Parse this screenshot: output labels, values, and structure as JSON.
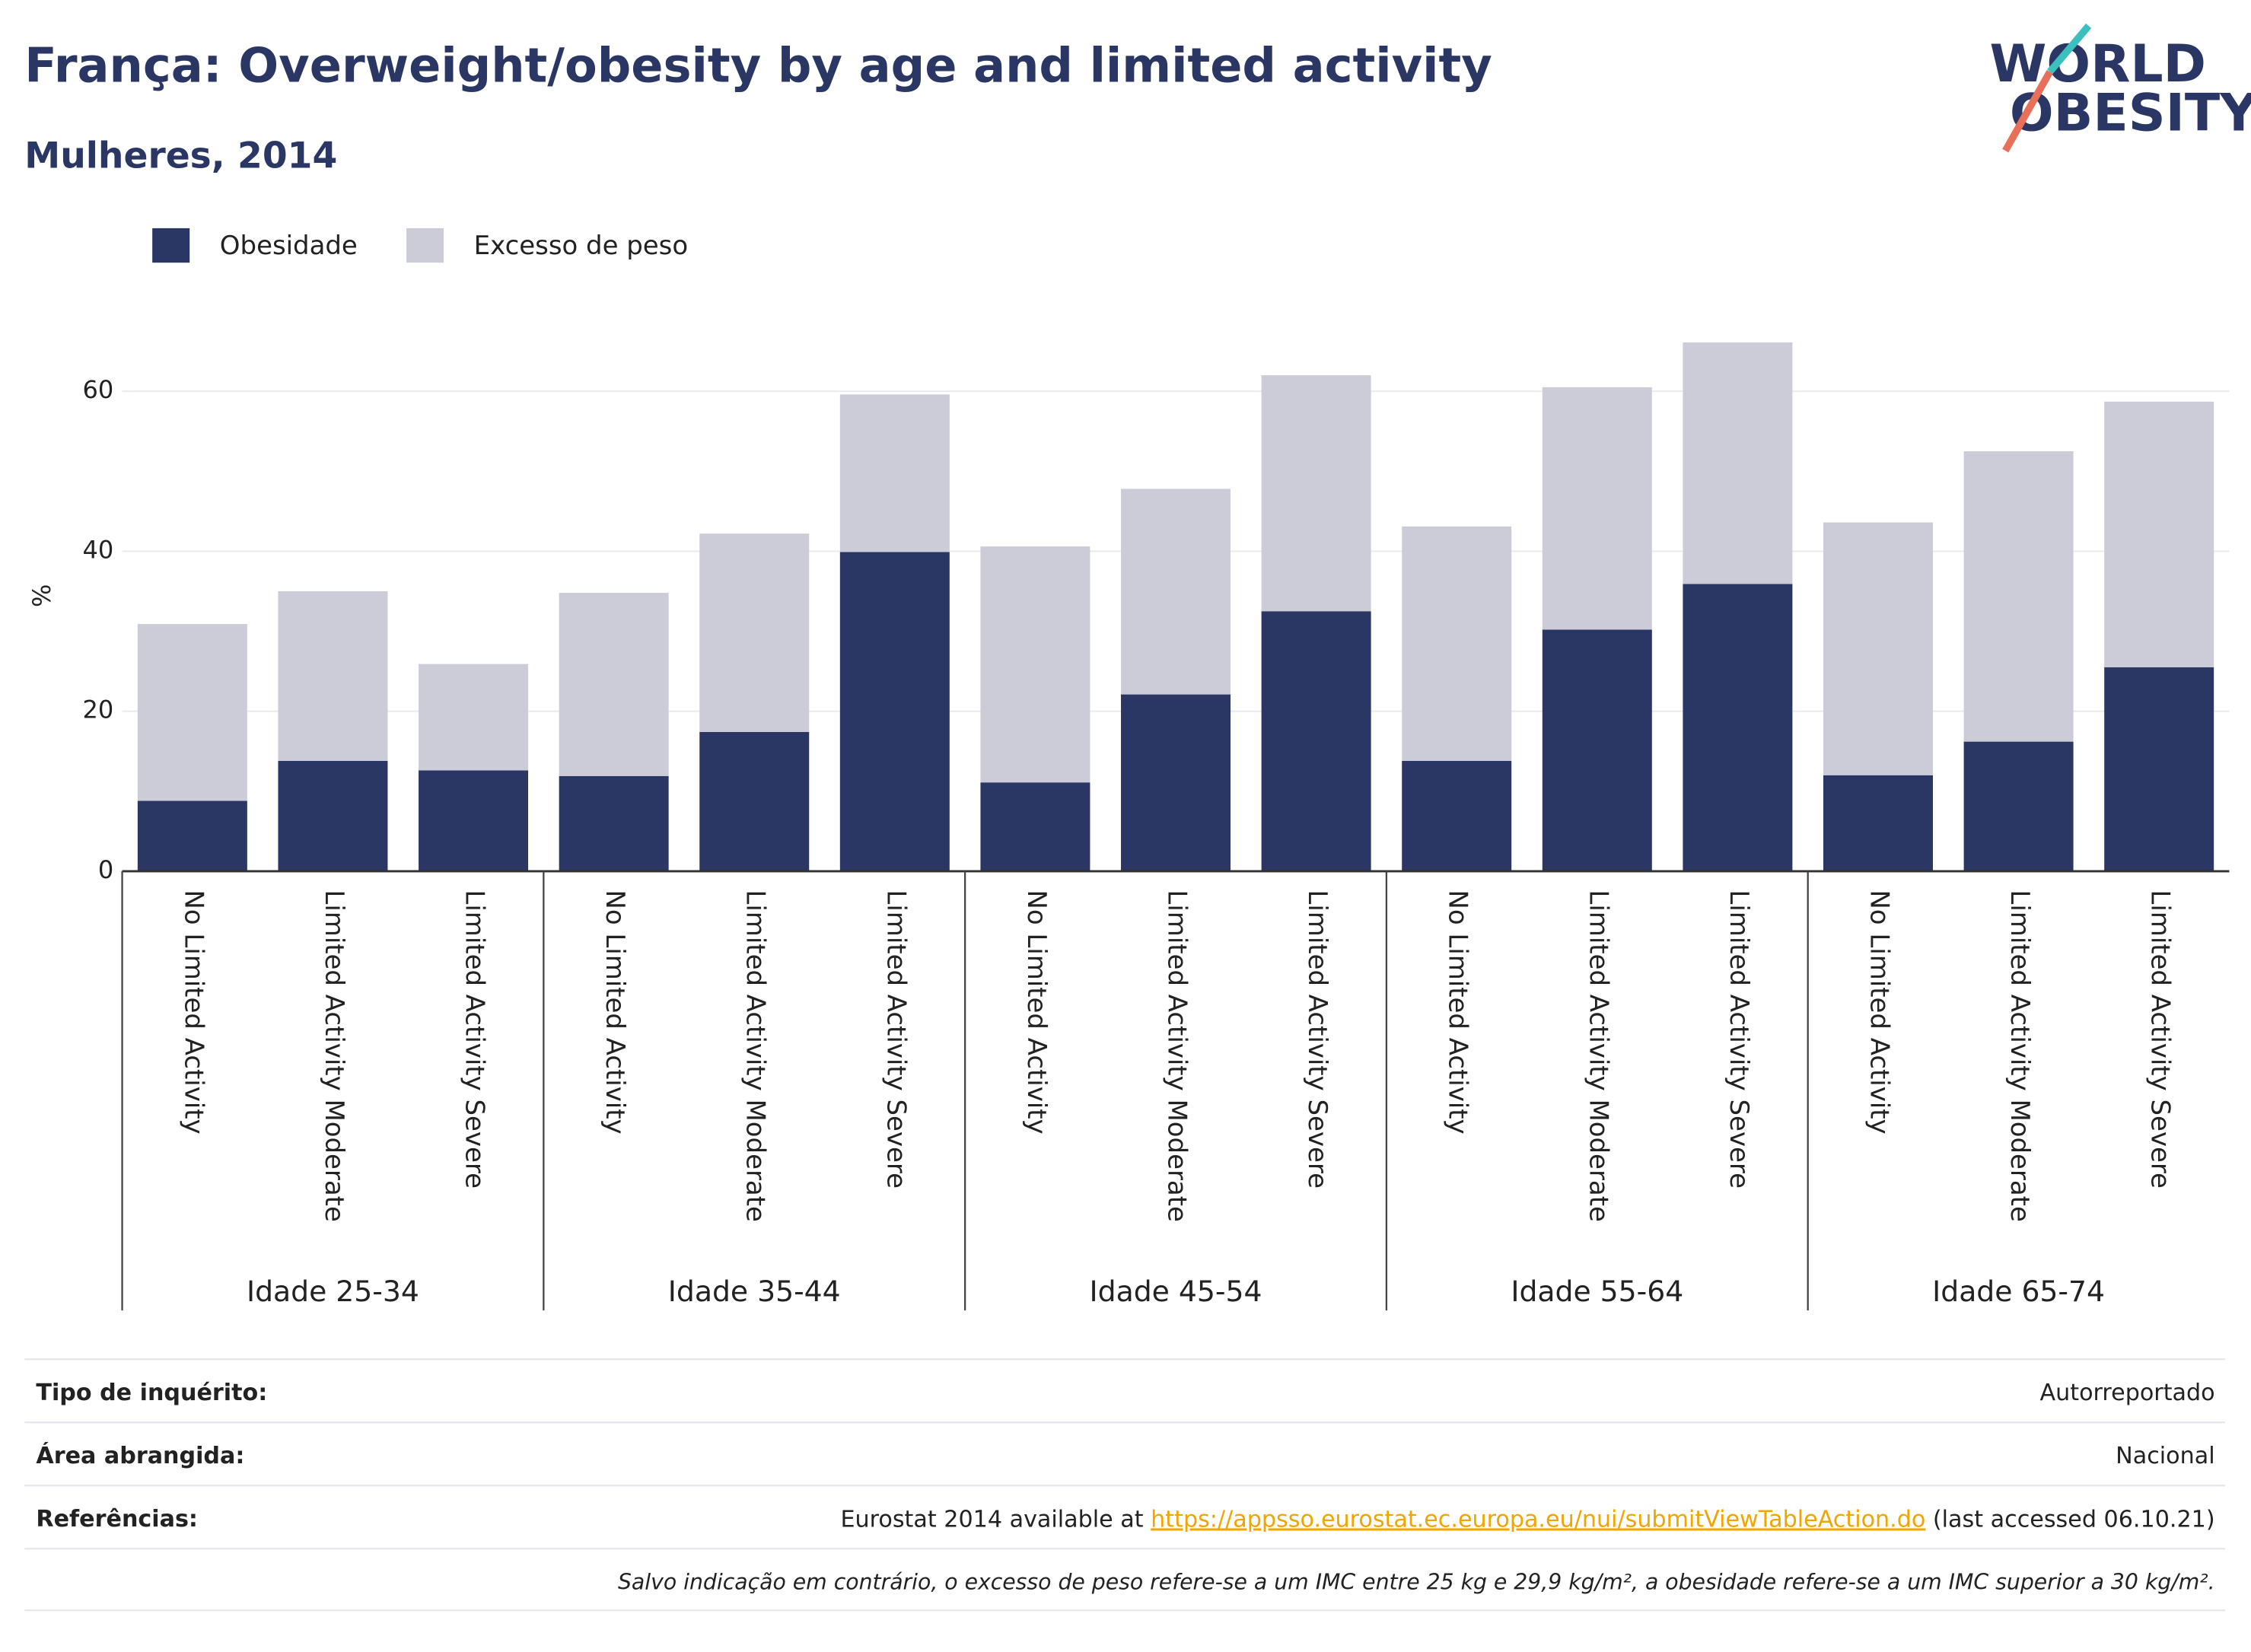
{
  "chart_data": {
    "type": "stacked_bar",
    "title": "França: Overweight/obesity by age and limited activity",
    "subtitle": "Mulheres, 2014",
    "y_label": "%",
    "categories": [
      "No Limited Activity",
      "Limited Activity Moderate",
      "Limited Activity Severe",
      "No Limited Activity",
      "Limited Activity Moderate",
      "Limited Activity Severe",
      "No Limited Activity",
      "Limited Activity Moderate",
      "Limited Activity Severe",
      "No Limited Activity",
      "Limited Activity Moderate",
      "Limited Activity Severe",
      "No Limited Activity",
      "Limited Activity Moderate",
      "Limited Activity Severe"
    ],
    "groups": [
      "Idade 25-34",
      "Idade 35-44",
      "Idade 45-54",
      "Idade 55-64",
      "Idade 65-74"
    ],
    "series": [
      {
        "name": "Obesidade",
        "color": "#2a3663",
        "values": [
          8.8,
          13.8,
          12.6,
          11.9,
          17.4,
          39.9,
          11.1,
          22.1,
          32.5,
          13.8,
          30.2,
          35.9,
          12.0,
          16.2,
          25.5
        ]
      },
      {
        "name": "Excesso de peso",
        "color": "#cbccd8",
        "values": [
          22.1,
          21.2,
          13.3,
          22.9,
          24.8,
          19.7,
          29.5,
          25.7,
          29.5,
          29.3,
          30.3,
          30.2,
          31.6,
          36.3,
          33.2
        ]
      }
    ],
    "ylim": [
      0,
      68
    ],
    "yticks": [
      0,
      20,
      40,
      60
    ],
    "grid": true,
    "legend": "top-left"
  },
  "logo": {
    "line1": "WORLD",
    "line2": "OBESITY"
  },
  "footer": {
    "rows": [
      {
        "label": "Tipo de inquérito:",
        "value": "Autorreportado"
      },
      {
        "label": "Área abrangida:",
        "value": "Nacional"
      }
    ],
    "references": {
      "label": "Referências:",
      "prefix": "Eurostat 2014 available at ",
      "link": "https://appsso.eurostat.ec.europa.eu/nui/submitViewTableAction.do",
      "suffix": " (last accessed 06.10.21)"
    },
    "note": "Salvo indicação em contrário, o excesso de peso refere-se a um IMC entre 25 kg e 29,9 kg/m², a obesidade refere-se a um IMC superior a 30 kg/m²."
  }
}
